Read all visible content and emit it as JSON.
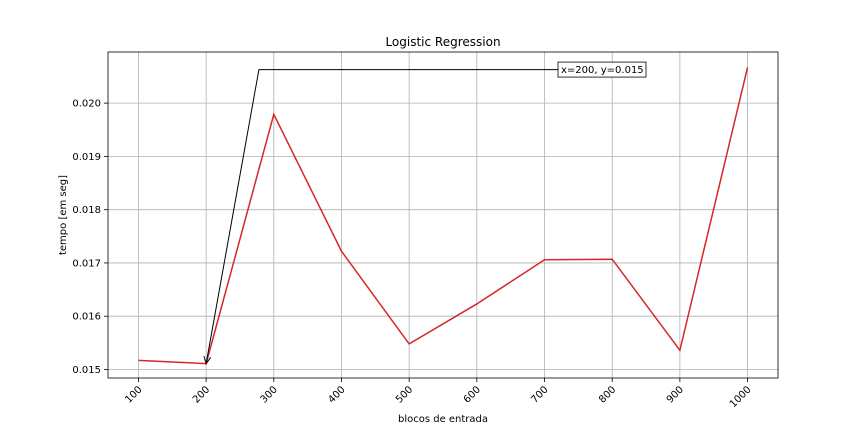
{
  "chart_data": {
    "type": "line",
    "title": "Logistic Regression",
    "xlabel": "blocos de entrada",
    "ylabel": "tempo [em seg]",
    "x": [
      100,
      200,
      300,
      400,
      500,
      600,
      700,
      800,
      900,
      1000
    ],
    "x_tick_labels": [
      "100",
      "200",
      "300",
      "400",
      "500",
      "600",
      "700",
      "800",
      "900",
      "1000"
    ],
    "y_ticks": [
      0.015,
      0.016,
      0.017,
      0.018,
      0.019,
      0.02
    ],
    "y_tick_labels": [
      "0.015",
      "0.016",
      "0.017",
      "0.018",
      "0.019",
      "0.020"
    ],
    "series": [
      {
        "values": [
          0.01517,
          0.01511,
          0.01979,
          0.01722,
          0.01548,
          0.01623,
          0.01706,
          0.01707,
          0.01536,
          0.02067
        ],
        "color": "#d62728"
      }
    ],
    "xlim": [
      55,
      1045
    ],
    "ylim": [
      0.01484,
      0.02096
    ],
    "grid": true,
    "annotation": {
      "text": "x=200, y=0.015",
      "point": [
        200,
        0.01511
      ],
      "text_anchor_data": [
        278,
        0.02063
      ]
    }
  }
}
